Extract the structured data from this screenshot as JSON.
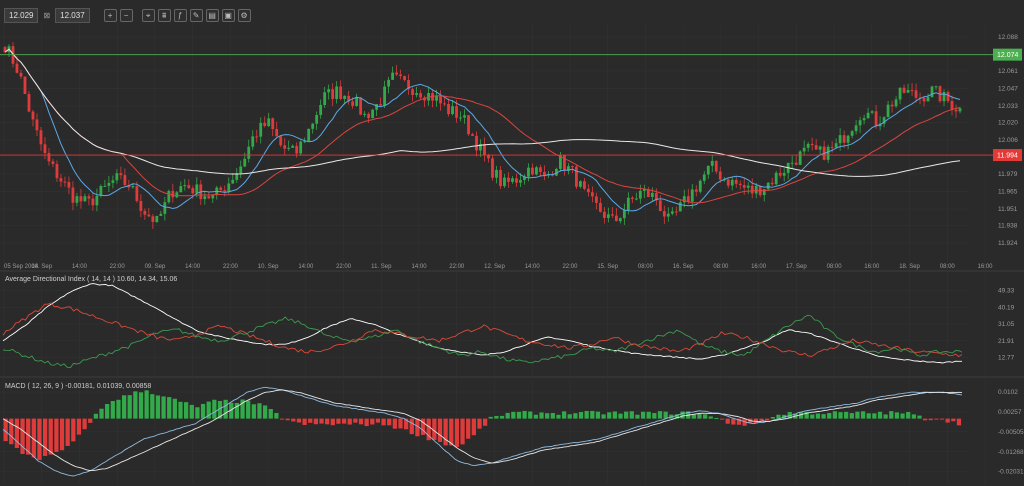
{
  "toolbar": {
    "bid": "12.029",
    "ask": "12.037",
    "mid_icon": "spread-icon",
    "buttons": [
      {
        "name": "zoom-in-button",
        "glyph": "+"
      },
      {
        "name": "zoom-out-button",
        "glyph": "−"
      },
      {
        "name": "cursor-tool-button",
        "glyph": "⌖"
      },
      {
        "name": "chart-type-button",
        "glyph": "⩩"
      },
      {
        "name": "indicators-button",
        "glyph": "ƒ"
      },
      {
        "name": "drawing-button",
        "glyph": "✎"
      },
      {
        "name": "template-button",
        "glyph": "▤"
      },
      {
        "name": "screenshot-button",
        "glyph": "▣"
      },
      {
        "name": "settings-button",
        "glyph": "⚙"
      }
    ]
  },
  "colors": {
    "background": "#2a2a2a",
    "grid": "#333333",
    "bull": "#33aa4a",
    "bear": "#e03b3b",
    "ma_blue": "#5aa9e6",
    "ma_red": "#d9453f",
    "ma_white": "#e8e8e8",
    "resistance": "#4caf50",
    "support": "#e53935",
    "adx_white": "#ffffff",
    "plus_di": "#3d9a4f",
    "minus_di": "#d94a3a"
  },
  "chart_data": [
    {
      "type": "candlestick",
      "panel": "price",
      "x_labels": [
        "05 Sep 2014",
        "08. Sep",
        "14:00",
        "22:00",
        "09. Sep",
        "14:00",
        "22:00",
        "10. Sep",
        "14:00",
        "22:00",
        "11. Sep",
        "14:00",
        "22:00",
        "12. Sep",
        "14:00",
        "22:00",
        "15. Sep",
        "08:00",
        "16. Sep",
        "08:00",
        "16:00",
        "17. Sep",
        "08:00",
        "16:00",
        "18. Sep",
        "08:00",
        "16:00"
      ],
      "y_ticks": [
        12.088,
        12.061,
        12.047,
        12.033,
        12.02,
        12.006,
        11.979,
        11.965,
        11.951,
        11.938,
        11.924
      ],
      "ylim": [
        11.912,
        12.1
      ],
      "horizontal_levels": [
        {
          "label": "12.074",
          "value": 12.074,
          "role": "resistance"
        },
        {
          "label": "11.994",
          "value": 11.994,
          "role": "support"
        }
      ],
      "close_path": [
        12.082,
        12.06,
        12.02,
        11.99,
        11.975,
        11.96,
        11.955,
        11.965,
        11.975,
        11.97,
        11.95,
        11.94,
        11.965,
        11.97,
        11.965,
        11.96,
        11.97,
        11.985,
        12.01,
        12.02,
        12.0,
        11.995,
        12.015,
        12.04,
        12.045,
        12.04,
        12.025,
        12.035,
        12.055,
        12.05,
        12.045,
        12.04,
        12.03,
        12.025,
        12.005,
        11.985,
        11.97,
        11.975,
        11.985,
        11.975,
        11.99,
        11.98,
        11.96,
        11.95,
        11.94,
        11.955,
        11.965,
        11.96,
        11.94,
        11.955,
        11.97,
        11.985,
        11.975,
        11.97,
        11.965,
        11.97,
        11.98,
        11.99,
        11.998,
        11.995,
        12.0,
        12.015,
        12.03,
        12.02,
        12.035,
        12.045,
        12.04,
        12.045,
        12.038,
        12.03
      ],
      "n_candles": 240,
      "series": [
        {
          "type": "line",
          "role": "fast-ma",
          "color": "#5aa9e6",
          "period": 10
        },
        {
          "type": "line",
          "role": "mid-ma",
          "color": "#d9453f",
          "period": 30
        },
        {
          "type": "line",
          "role": "slow-ma",
          "color": "#e8e8e8",
          "period": 100
        }
      ]
    },
    {
      "type": "line",
      "panel": "adx",
      "title": "Average Directional Index ( 14, 14 ) 10.60, 14.34, 15.06",
      "y_ticks": [
        49.33,
        40.19,
        31.05,
        21.91,
        12.77
      ],
      "ylim": [
        5,
        55
      ],
      "series": [
        {
          "role": "adx",
          "color": "#ffffff",
          "values": [
            22,
            30,
            40,
            48,
            53,
            52,
            46,
            40,
            33,
            27,
            24,
            22,
            20,
            20,
            24,
            30,
            34,
            31,
            26,
            22,
            18,
            16,
            14,
            16,
            20,
            24,
            22,
            19,
            17,
            15,
            14,
            13,
            12,
            14,
            18,
            22,
            28,
            26,
            22,
            18,
            14,
            12,
            11,
            10,
            11
          ]
        },
        {
          "role": "plus-di",
          "color": "#3d9a4f",
          "values": [
            18,
            14,
            10,
            8,
            12,
            16,
            20,
            26,
            28,
            24,
            22,
            26,
            30,
            34,
            30,
            24,
            22,
            24,
            28,
            22,
            18,
            14,
            16,
            12,
            10,
            12,
            14,
            18,
            16,
            20,
            24,
            28,
            20,
            16,
            14,
            22,
            30,
            36,
            26,
            20,
            16,
            18,
            14,
            16,
            16
          ]
        },
        {
          "role": "minus-di",
          "color": "#d94a3a",
          "values": [
            26,
            34,
            42,
            40,
            36,
            32,
            28,
            24,
            22,
            26,
            30,
            26,
            22,
            18,
            16,
            18,
            22,
            28,
            26,
            24,
            22,
            26,
            30,
            26,
            22,
            20,
            18,
            20,
            24,
            20,
            18,
            16,
            20,
            26,
            24,
            20,
            16,
            14,
            18,
            22,
            20,
            18,
            16,
            15,
            14
          ]
        }
      ]
    },
    {
      "type": "bar",
      "panel": "macd",
      "title": "MACD ( 12, 26, 9 ) -0.00181, 0.01039, 0.00858",
      "y_ticks": [
        0.0102,
        0.00257,
        -0.00505,
        -0.01268,
        -0.02031
      ],
      "ylim": [
        -0.025,
        0.014
      ],
      "histogram_colors": {
        "positive": "#33aa4a",
        "negative": "#e03b3b"
      },
      "macd_line": [
        -0.004,
        -0.01,
        -0.016,
        -0.02,
        -0.022,
        -0.02,
        -0.016,
        -0.012,
        -0.008,
        -0.006,
        -0.004,
        -0.002,
        0.002,
        0.006,
        0.01,
        0.012,
        0.011,
        0.009,
        0.007,
        0.005,
        0.004,
        0.003,
        0.002,
        0.0,
        -0.004,
        -0.01,
        -0.016,
        -0.018,
        -0.017,
        -0.015,
        -0.013,
        -0.011,
        -0.01,
        -0.009,
        -0.008,
        -0.006,
        -0.004,
        -0.002,
        0.0,
        0.002,
        0.003,
        0.002,
        0.0,
        -0.002,
        -0.001,
        0.001,
        0.003,
        0.004,
        0.005,
        0.006,
        0.008,
        0.009,
        0.01,
        0.01,
        0.01,
        0.009
      ],
      "signal_line": [
        0.0,
        -0.004,
        -0.009,
        -0.014,
        -0.018,
        -0.02,
        -0.019,
        -0.016,
        -0.013,
        -0.01,
        -0.007,
        -0.004,
        -0.001,
        0.003,
        0.007,
        0.01,
        0.011,
        0.01,
        0.008,
        0.006,
        0.005,
        0.004,
        0.003,
        0.002,
        -0.001,
        -0.006,
        -0.011,
        -0.015,
        -0.017,
        -0.016,
        -0.014,
        -0.012,
        -0.011,
        -0.01,
        -0.009,
        -0.007,
        -0.005,
        -0.003,
        -0.001,
        0.001,
        0.002,
        0.002,
        0.001,
        -0.001,
        -0.001,
        0.0,
        0.002,
        0.003,
        0.004,
        0.005,
        0.007,
        0.008,
        0.009,
        0.01,
        0.01,
        0.01
      ]
    }
  ]
}
